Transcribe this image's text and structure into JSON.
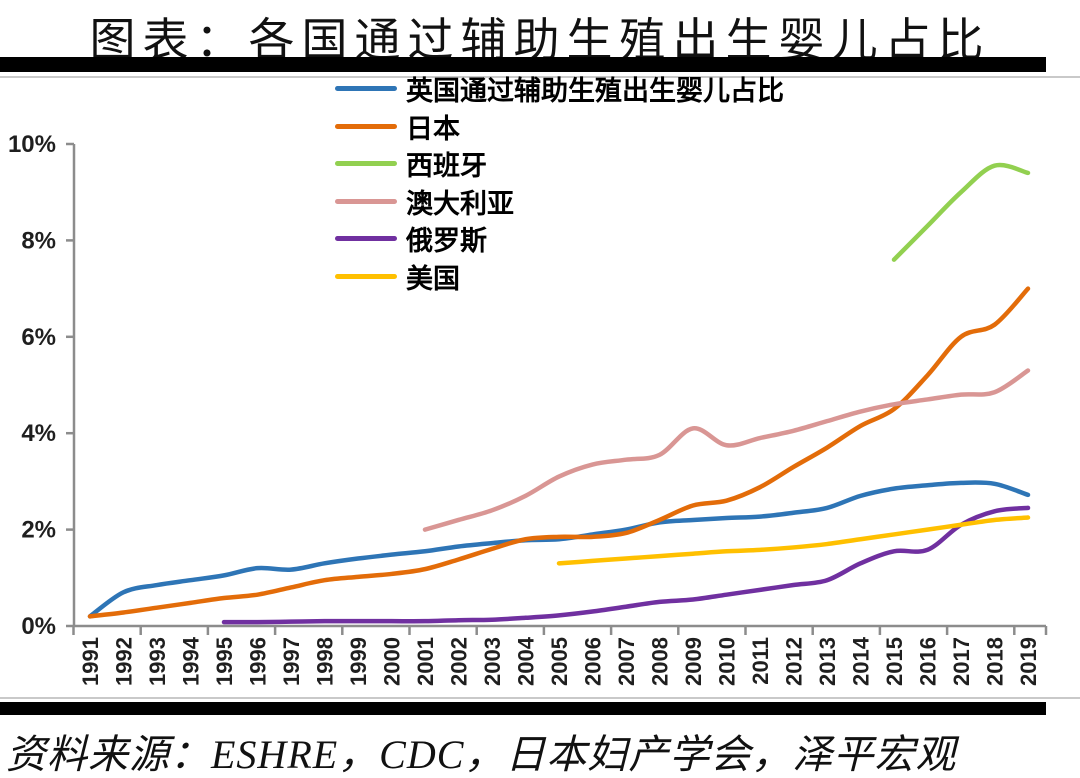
{
  "header": {
    "title": "图表：各国通过辅助生殖出生婴儿占比"
  },
  "footer": {
    "source": "资料来源：ESHRE，CDC，日本妇产学会，泽平宏观"
  },
  "chart_data": {
    "type": "line",
    "title": "图表：各国通过辅助生殖出生婴儿占比",
    "xlabel": "",
    "ylabel": "",
    "ylim": [
      0,
      10
    ],
    "grid": false,
    "legend_position": "top-center",
    "yticklabels": [
      "0%",
      "2%",
      "4%",
      "6%",
      "8%",
      "10%"
    ],
    "x": [
      1991,
      1992,
      1993,
      1994,
      1995,
      1996,
      1997,
      1998,
      1999,
      2000,
      2001,
      2002,
      2003,
      2004,
      2005,
      2006,
      2007,
      2008,
      2009,
      2010,
      2011,
      2012,
      2013,
      2014,
      2015,
      2016,
      2017,
      2018,
      2019
    ],
    "series": [
      {
        "id": "uk",
        "name": "英国通过辅助生殖出生婴儿占比",
        "color": "#2E75B6",
        "values": [
          0.2,
          0.7,
          0.85,
          0.95,
          1.05,
          1.2,
          1.17,
          1.3,
          1.4,
          1.48,
          1.55,
          1.65,
          1.72,
          1.78,
          1.8,
          1.9,
          2.0,
          2.15,
          2.2,
          2.24,
          2.27,
          2.35,
          2.45,
          2.7,
          2.85,
          2.92,
          2.97,
          2.95,
          2.72
        ]
      },
      {
        "id": "japan",
        "name": "日本",
        "color": "#E36C09",
        "values": [
          0.2,
          0.28,
          0.38,
          0.48,
          0.58,
          0.65,
          0.8,
          0.95,
          1.02,
          1.08,
          1.18,
          1.38,
          1.6,
          1.8,
          1.85,
          1.85,
          1.93,
          2.2,
          2.5,
          2.6,
          2.88,
          3.3,
          3.7,
          4.15,
          4.5,
          5.2,
          6.0,
          6.25,
          7.0
        ]
      },
      {
        "id": "spain",
        "name": "西班牙",
        "color": "#92D050",
        "values": [
          null,
          null,
          null,
          null,
          null,
          null,
          null,
          null,
          null,
          null,
          null,
          null,
          null,
          null,
          null,
          null,
          null,
          null,
          null,
          null,
          null,
          null,
          null,
          null,
          7.6,
          8.3,
          9.0,
          9.55,
          9.4
        ]
      },
      {
        "id": "australia",
        "name": "澳大利亚",
        "color": "#D99694",
        "values": [
          null,
          null,
          null,
          null,
          null,
          null,
          null,
          null,
          null,
          null,
          2.0,
          2.2,
          2.4,
          2.7,
          3.1,
          3.35,
          3.45,
          3.55,
          4.1,
          3.75,
          3.9,
          4.05,
          4.25,
          4.45,
          4.6,
          4.7,
          4.8,
          4.85,
          5.3
        ]
      },
      {
        "id": "russia",
        "name": "俄罗斯",
        "color": "#7030A0",
        "values": [
          null,
          null,
          null,
          null,
          0.08,
          0.08,
          0.09,
          0.1,
          0.1,
          0.1,
          0.1,
          0.12,
          0.13,
          0.17,
          0.22,
          0.3,
          0.4,
          0.5,
          0.55,
          0.65,
          0.75,
          0.85,
          0.95,
          1.3,
          1.55,
          1.58,
          2.1,
          2.38,
          2.45
        ]
      },
      {
        "id": "us",
        "name": "美国",
        "color": "#FFC000",
        "values": [
          null,
          null,
          null,
          null,
          null,
          null,
          null,
          null,
          null,
          null,
          null,
          null,
          null,
          null,
          1.3,
          1.35,
          1.4,
          1.45,
          1.5,
          1.55,
          1.58,
          1.63,
          1.7,
          1.8,
          1.9,
          2.0,
          2.1,
          2.2,
          2.25
        ]
      }
    ]
  }
}
